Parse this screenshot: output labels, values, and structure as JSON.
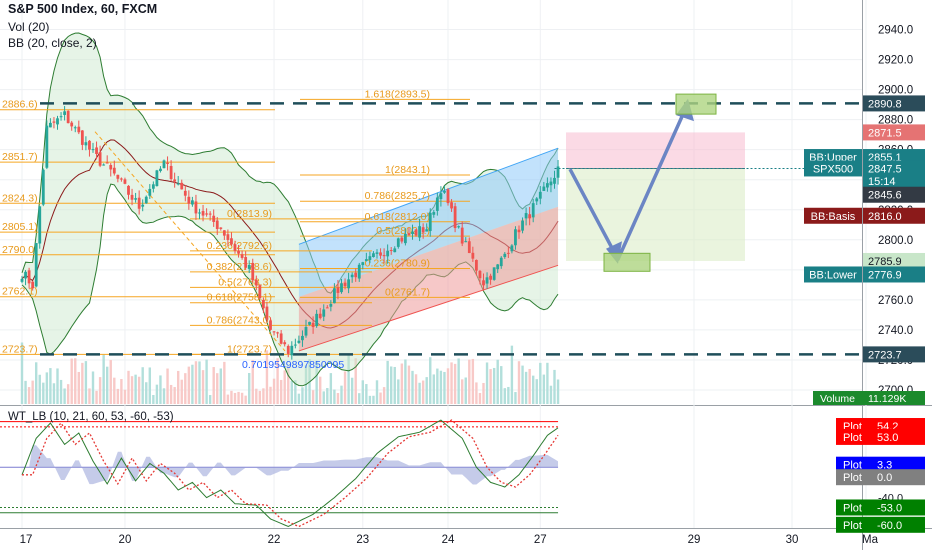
{
  "header": {
    "symbol_title": "S&P 500 Index, 60, FXCM",
    "vol_label": "Vol (20)",
    "bb_label": "BB (20, close, 2)",
    "osc_label": "WT_LB (10, 21, 60, 53, -60, -53)"
  },
  "colors": {
    "candle_up": "#26a69a",
    "candle_down": "#ef5350",
    "bb_fill": "#c8e6c9",
    "bb_line": "#2e7d32",
    "bb_basis": "#8b1a1a",
    "fib": "#f5a623",
    "channel_upper_fill": "#90caf9",
    "channel_lower_fill": "#ef9a9a",
    "arrow": "#6b85c4",
    "dash_level": "#1f4e5a"
  },
  "chart_data": [
    {
      "type": "candlestick",
      "title": "S&P 500 Index, 60, FXCM",
      "x_tick_labels": [
        "17",
        "20",
        "22",
        "23",
        "24",
        "27",
        "29",
        "30",
        "Ma"
      ],
      "y_tick_labels": [
        "2940.0",
        "2920.0",
        "2900.0",
        "2880.0",
        "2860.0",
        "2840.0",
        "2820.0",
        "2800.0",
        "2780.0",
        "2760.0",
        "2740.0",
        "2720.0",
        "2700.0"
      ],
      "ylim": [
        2690,
        2953
      ],
      "path_points": [
        {
          "i": 0,
          "price": 2778
        },
        {
          "i": 3,
          "price": 2770
        },
        {
          "i": 7,
          "price": 2874
        },
        {
          "i": 12,
          "price": 2883
        },
        {
          "i": 20,
          "price": 2857
        },
        {
          "i": 26,
          "price": 2843
        },
        {
          "i": 33,
          "price": 2822
        },
        {
          "i": 40,
          "price": 2851
        },
        {
          "i": 48,
          "price": 2823
        },
        {
          "i": 56,
          "price": 2808
        },
        {
          "i": 64,
          "price": 2780
        },
        {
          "i": 70,
          "price": 2740
        },
        {
          "i": 75,
          "price": 2726
        },
        {
          "i": 82,
          "price": 2745
        },
        {
          "i": 90,
          "price": 2770
        },
        {
          "i": 98,
          "price": 2786
        },
        {
          "i": 106,
          "price": 2800
        },
        {
          "i": 114,
          "price": 2808
        },
        {
          "i": 118,
          "price": 2835
        },
        {
          "i": 124,
          "price": 2800
        },
        {
          "i": 130,
          "price": 2772
        },
        {
          "i": 134,
          "price": 2782
        },
        {
          "i": 140,
          "price": 2808
        },
        {
          "i": 146,
          "price": 2828
        },
        {
          "i": 151,
          "price": 2847
        }
      ],
      "bollinger_bands": {
        "label": "BB (20, close, 2)",
        "upper_value": 2855.1,
        "basis_value": 2816.0,
        "lower_value": 2776.9
      },
      "fibonacci_levels": [
        {
          "label": "1.618(2893.5)",
          "price": 2893.5
        },
        {
          "label": "1(2843.1)",
          "price": 2843.1
        },
        {
          "label": "0.786(2825.7)",
          "price": 2825.7
        },
        {
          "label": "0.618(2812.0)",
          "price": 2812.0
        },
        {
          "label": "0.5(2802...)",
          "price": 2802.4
        },
        {
          "label": "0.236(2780.9)",
          "price": 2780.9
        },
        {
          "label": "0(2761.7)",
          "price": 2761.7
        },
        {
          "label": "2886.6)",
          "price": 2886.6
        },
        {
          "label": "2851.7)",
          "price": 2851.7
        },
        {
          "label": "2824.3)",
          "price": 2824.3
        },
        {
          "label": "2805.1)",
          "price": 2805.1
        },
        {
          "label": "2790.0)",
          "price": 2790.0
        },
        {
          "label": "2762.1)",
          "price": 2762.1
        },
        {
          "label": "2723.7)",
          "price": 2723.7
        },
        {
          "label": "0(2813.9)",
          "price": 2813.9
        },
        {
          "label": "0.236(2792.6)",
          "price": 2792.6
        },
        {
          "label": "0.382(2778.6)",
          "price": 2778.6
        },
        {
          "label": "0.5(2768.3)",
          "price": 2768.3
        },
        {
          "label": "0.618(2758.1)",
          "price": 2758.1
        },
        {
          "label": "0.786(2743.0)",
          "price": 2743.0
        },
        {
          "label": "1(2723.7)",
          "price": 2723.7
        }
      ],
      "extension_label": "0.7019549897850095",
      "dashed_levels": [
        2890.8,
        2723.7
      ],
      "price_labels": [
        {
          "text": "2890.8",
          "price": 2890.8,
          "bg": "#2b4c5a",
          "fg": "#ffffff"
        },
        {
          "text": "2871.5",
          "price": 2871.5,
          "bg": "#e57373",
          "fg": "#ffffff"
        },
        {
          "text": "BB:Upper",
          "price": 2855.1,
          "bg": "#1a7f86",
          "fg": "#ffffff",
          "text2": "2855.1"
        },
        {
          "text": "SPX500",
          "price": 2847.5,
          "bg": "#1a7f86",
          "fg": "#ffffff",
          "text2": "2847.5"
        },
        {
          "text": "15:14",
          "price": 2839.0,
          "bg": "#1a7f86",
          "fg": "#ffffff"
        },
        {
          "text": "2845.6",
          "price": 2830.0,
          "bg": "#333a44",
          "fg": "#ffffff"
        },
        {
          "text": "BB:Basis",
          "price": 2816.0,
          "bg": "#8b1a1a",
          "fg": "#ffffff",
          "text2": "2816.0"
        },
        {
          "text": "2785.9",
          "price": 2785.9,
          "bg": "#c8e6c9",
          "fg": "#131722"
        },
        {
          "text": "BB:Lower",
          "price": 2776.9,
          "bg": "#1a7f86",
          "fg": "#ffffff",
          "text2": "2776.9"
        },
        {
          "text": "2723.7",
          "price": 2723.7,
          "bg": "#2b4c5a",
          "fg": "#ffffff"
        }
      ],
      "volume_label": {
        "name": "Volume",
        "value": "11.129K"
      },
      "trade_box": {
        "entry": 2847.5,
        "stop": 2871.5,
        "target": 2785.9
      }
    },
    {
      "type": "line",
      "title": "WT_LB (10, 21, 60, 53, -60, -53)",
      "y_tick_labels": [
        "60.0",
        "40.0",
        "0.0",
        "-40.0"
      ],
      "ylim": [
        -80,
        70
      ],
      "reference_levels": [
        60,
        53,
        0,
        -53,
        -60
      ],
      "wt1_points": [
        {
          "i": 0,
          "v": -10
        },
        {
          "i": 4,
          "v": 38
        },
        {
          "i": 8,
          "v": 58
        },
        {
          "i": 12,
          "v": 30
        },
        {
          "i": 16,
          "v": 45
        },
        {
          "i": 20,
          "v": 8
        },
        {
          "i": 24,
          "v": -22
        },
        {
          "i": 28,
          "v": 12
        },
        {
          "i": 32,
          "v": -18
        },
        {
          "i": 36,
          "v": 5
        },
        {
          "i": 40,
          "v": -8
        },
        {
          "i": 44,
          "v": -30
        },
        {
          "i": 48,
          "v": -20
        },
        {
          "i": 52,
          "v": -40
        },
        {
          "i": 56,
          "v": -30
        },
        {
          "i": 60,
          "v": -48
        },
        {
          "i": 66,
          "v": -50
        },
        {
          "i": 70,
          "v": -68
        },
        {
          "i": 75,
          "v": -78
        },
        {
          "i": 82,
          "v": -62
        },
        {
          "i": 88,
          "v": -40
        },
        {
          "i": 94,
          "v": -15
        },
        {
          "i": 100,
          "v": 18
        },
        {
          "i": 106,
          "v": 40
        },
        {
          "i": 112,
          "v": 46
        },
        {
          "i": 118,
          "v": 62
        },
        {
          "i": 124,
          "v": 38
        },
        {
          "i": 128,
          "v": 0
        },
        {
          "i": 132,
          "v": -20
        },
        {
          "i": 136,
          "v": -26
        },
        {
          "i": 140,
          "v": -10
        },
        {
          "i": 144,
          "v": 15
        },
        {
          "i": 148,
          "v": 42
        },
        {
          "i": 152,
          "v": 55
        }
      ],
      "plot_labels": [
        {
          "name": "Plot",
          "value": "54.2",
          "bg": "#ff0000"
        },
        {
          "name": "Plot",
          "value": "53.0",
          "bg": "#ff0000"
        },
        {
          "name": "Plot",
          "value": "3.3",
          "bg": "#0000ff"
        },
        {
          "name": "Plot",
          "value": "0.0",
          "bg": "#808080"
        },
        {
          "name": "Plot",
          "value": "-53.0",
          "bg": "#008000"
        },
        {
          "name": "Plot",
          "value": "-60.0",
          "bg": "#008000"
        }
      ]
    }
  ]
}
